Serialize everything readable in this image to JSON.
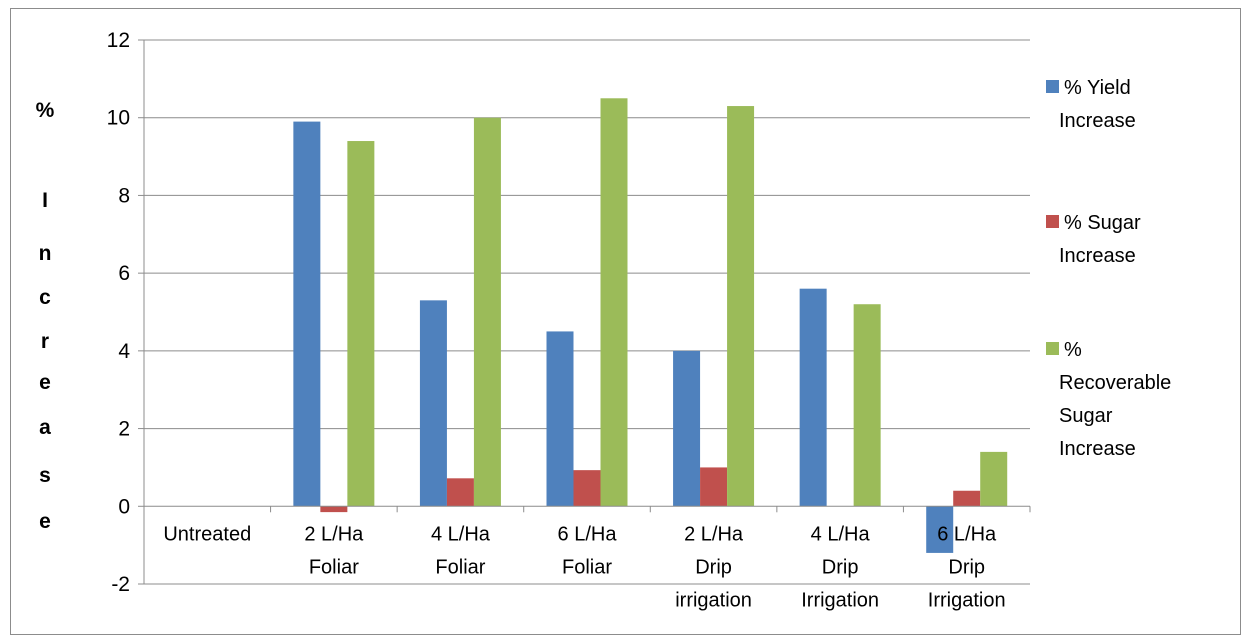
{
  "chart_data": {
    "type": "bar",
    "categories": [
      [
        "Untreated"
      ],
      [
        "2 L/Ha",
        "Foliar"
      ],
      [
        "4 L/Ha",
        "Foliar"
      ],
      [
        "6 L/Ha",
        "Foliar"
      ],
      [
        "2 L/Ha",
        "Drip",
        "irrigation"
      ],
      [
        "4 L/Ha",
        "Drip",
        "Irrigation"
      ],
      [
        "6 L/Ha",
        "Drip",
        "Irrigation"
      ]
    ],
    "series": [
      {
        "name": [
          "% Yield",
          "Increase"
        ],
        "color": "#4f81bd",
        "values": [
          0,
          9.9,
          5.3,
          4.5,
          4.0,
          5.6,
          -1.2
        ]
      },
      {
        "name": [
          "% Sugar",
          "Increase"
        ],
        "color": "#c0504d",
        "values": [
          0,
          -0.15,
          0.72,
          0.93,
          1.0,
          0,
          0.4
        ]
      },
      {
        "name": [
          "%",
          "Recoverable",
          "Sugar",
          "Increase"
        ],
        "color": "#9bbb59",
        "values": [
          0,
          9.4,
          10.0,
          10.5,
          10.3,
          5.2,
          1.4
        ]
      }
    ],
    "ylabel": [
      "%",
      "I",
      "n",
      "c",
      "r",
      "e",
      "a",
      "s",
      "e"
    ],
    "ylim": [
      -2,
      12
    ],
    "yticks": [
      -2,
      0,
      2,
      4,
      6,
      8,
      10,
      12
    ],
    "grid": true,
    "legend_position": "right"
  }
}
